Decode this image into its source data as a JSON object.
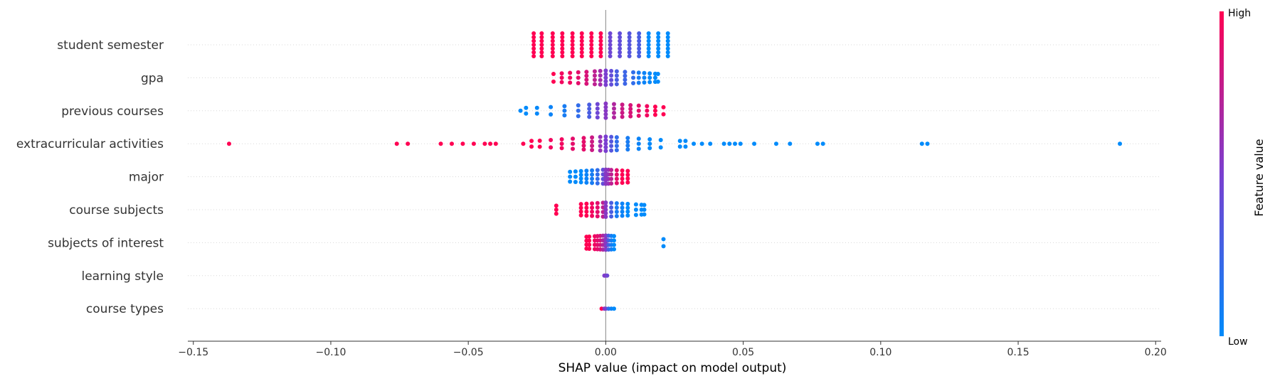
{
  "chart_data": {
    "type": "scatter",
    "subtype": "shap-beeswarm",
    "xlabel": "SHAP value (impact on model output)",
    "xlim": [
      -0.152,
      0.202
    ],
    "xticks": [
      -0.15,
      -0.1,
      -0.05,
      0.0,
      0.05,
      0.1,
      0.15,
      0.2
    ],
    "xtick_labels": [
      "−0.15",
      "−0.10",
      "−0.05",
      "0.00",
      "0.05",
      "0.10",
      "0.15",
      "0.20"
    ],
    "colorbar": {
      "title": "Feature value",
      "high_label": "High",
      "low_label": "Low",
      "low_color": "#008bfb",
      "high_color": "#ff0052"
    },
    "grid": "horizontal-dotted",
    "features": [
      {
        "name": "student semester",
        "points": [
          [
            -0.0262,
            1.0
          ],
          [
            -0.0233,
            1.0
          ],
          [
            -0.0193,
            1.0
          ],
          [
            -0.0158,
            1.0
          ],
          [
            -0.0121,
            1.0
          ],
          [
            -0.0087,
            1.0
          ],
          [
            -0.0052,
            1.0
          ],
          [
            -0.0018,
            1.0
          ],
          [
            0.0016,
            0.45
          ],
          [
            0.0051,
            0.4
          ],
          [
            0.0086,
            0.35
          ],
          [
            0.0121,
            0.3
          ],
          [
            0.0156,
            0.0
          ],
          [
            0.0191,
            0.0
          ],
          [
            0.0226,
            0.0
          ]
        ]
      },
      {
        "name": "gpa",
        "points": [
          [
            -0.019,
            1.0
          ],
          [
            -0.016,
            0.95
          ],
          [
            -0.013,
            0.95
          ],
          [
            -0.01,
            0.9
          ],
          [
            -0.007,
            0.85
          ],
          [
            -0.004,
            0.75
          ],
          [
            -0.002,
            0.65
          ],
          [
            0.0,
            0.5
          ],
          [
            0.002,
            0.4
          ],
          [
            0.004,
            0.3
          ],
          [
            0.007,
            0.25
          ],
          [
            0.01,
            0.2
          ],
          [
            0.012,
            0.1
          ],
          [
            0.014,
            0.05
          ],
          [
            0.016,
            0.02
          ],
          [
            0.018,
            0.0
          ],
          [
            0.019,
            0.0
          ]
        ]
      },
      {
        "name": "previous courses",
        "points": [
          [
            -0.031,
            0.0
          ],
          [
            -0.029,
            0.0
          ],
          [
            -0.025,
            0.02
          ],
          [
            -0.02,
            0.05
          ],
          [
            -0.015,
            0.1
          ],
          [
            -0.01,
            0.2
          ],
          [
            -0.006,
            0.3
          ],
          [
            -0.003,
            0.45
          ],
          [
            0.0,
            0.55
          ],
          [
            0.003,
            0.7
          ],
          [
            0.006,
            0.8
          ],
          [
            0.009,
            0.85
          ],
          [
            0.012,
            0.9
          ],
          [
            0.015,
            0.95
          ],
          [
            0.018,
            1.0
          ],
          [
            0.021,
            1.0
          ]
        ]
      },
      {
        "name": "extracurricular activities",
        "points": [
          [
            -0.137,
            1.0
          ],
          [
            -0.076,
            1.0
          ],
          [
            -0.072,
            1.0
          ],
          [
            -0.06,
            1.0
          ],
          [
            -0.056,
            1.0
          ],
          [
            -0.052,
            1.0
          ],
          [
            -0.048,
            1.0
          ],
          [
            -0.044,
            1.0
          ],
          [
            -0.042,
            1.0
          ],
          [
            -0.04,
            1.0
          ],
          [
            -0.03,
            1.0
          ],
          [
            -0.027,
            1.0
          ],
          [
            -0.024,
            1.0
          ],
          [
            -0.02,
            0.95
          ],
          [
            -0.016,
            0.95
          ],
          [
            -0.012,
            0.9
          ],
          [
            -0.008,
            0.9
          ],
          [
            -0.005,
            0.8
          ],
          [
            -0.002,
            0.6
          ],
          [
            0.0,
            0.5
          ],
          [
            0.002,
            0.35
          ],
          [
            0.004,
            0.2
          ],
          [
            0.008,
            0.1
          ],
          [
            0.012,
            0.05
          ],
          [
            0.016,
            0.02
          ],
          [
            0.02,
            0.0
          ],
          [
            0.027,
            0.0
          ],
          [
            0.029,
            0.0
          ],
          [
            0.032,
            0.0
          ],
          [
            0.035,
            0.0
          ],
          [
            0.038,
            0.0
          ],
          [
            0.043,
            0.0
          ],
          [
            0.045,
            0.0
          ],
          [
            0.047,
            0.0
          ],
          [
            0.049,
            0.0
          ],
          [
            0.054,
            0.0
          ],
          [
            0.062,
            0.0
          ],
          [
            0.067,
            0.0
          ],
          [
            0.077,
            0.0
          ],
          [
            0.079,
            0.0
          ],
          [
            0.115,
            0.0
          ],
          [
            0.117,
            0.0
          ],
          [
            0.187,
            0.0
          ]
        ]
      },
      {
        "name": "major",
        "points": [
          [
            -0.013,
            0.0
          ],
          [
            -0.011,
            0.0
          ],
          [
            -0.009,
            0.0
          ],
          [
            -0.007,
            0.05
          ],
          [
            -0.005,
            0.1
          ],
          [
            -0.003,
            0.2
          ],
          [
            -0.001,
            0.4
          ],
          [
            0.0,
            0.55
          ],
          [
            0.001,
            0.6
          ],
          [
            0.002,
            0.75
          ],
          [
            0.004,
            0.9
          ],
          [
            0.006,
            1.0
          ],
          [
            0.008,
            1.0
          ]
        ]
      },
      {
        "name": "course subjects",
        "points": [
          [
            -0.018,
            1.0
          ],
          [
            -0.009,
            1.0
          ],
          [
            -0.007,
            1.0
          ],
          [
            -0.005,
            0.95
          ],
          [
            -0.003,
            0.9
          ],
          [
            -0.001,
            0.75
          ],
          [
            0.0,
            0.55
          ],
          [
            0.002,
            0.3
          ],
          [
            0.004,
            0.1
          ],
          [
            0.006,
            0.05
          ],
          [
            0.008,
            0.0
          ],
          [
            0.011,
            0.0
          ],
          [
            0.013,
            0.0
          ],
          [
            0.014,
            0.0
          ]
        ]
      },
      {
        "name": "subjects of interest",
        "points": [
          [
            -0.007,
            1.0
          ],
          [
            -0.006,
            1.0
          ],
          [
            -0.004,
            0.95
          ],
          [
            -0.003,
            0.9
          ],
          [
            -0.002,
            0.85
          ],
          [
            -0.001,
            0.7
          ],
          [
            0.0,
            0.55
          ],
          [
            0.001,
            0.3
          ],
          [
            0.002,
            0.1
          ],
          [
            0.003,
            0.0
          ],
          [
            0.021,
            0.0
          ]
        ]
      },
      {
        "name": "learning style",
        "points": [
          [
            -0.0005,
            0.5
          ],
          [
            0.0,
            0.55
          ],
          [
            0.0005,
            0.45
          ]
        ]
      },
      {
        "name": "course types",
        "points": [
          [
            -0.0015,
            1.0
          ],
          [
            -0.0005,
            0.6
          ],
          [
            0.0,
            0.5
          ],
          [
            0.001,
            0.2
          ],
          [
            0.002,
            0.05
          ],
          [
            0.003,
            0.0
          ]
        ]
      }
    ]
  }
}
